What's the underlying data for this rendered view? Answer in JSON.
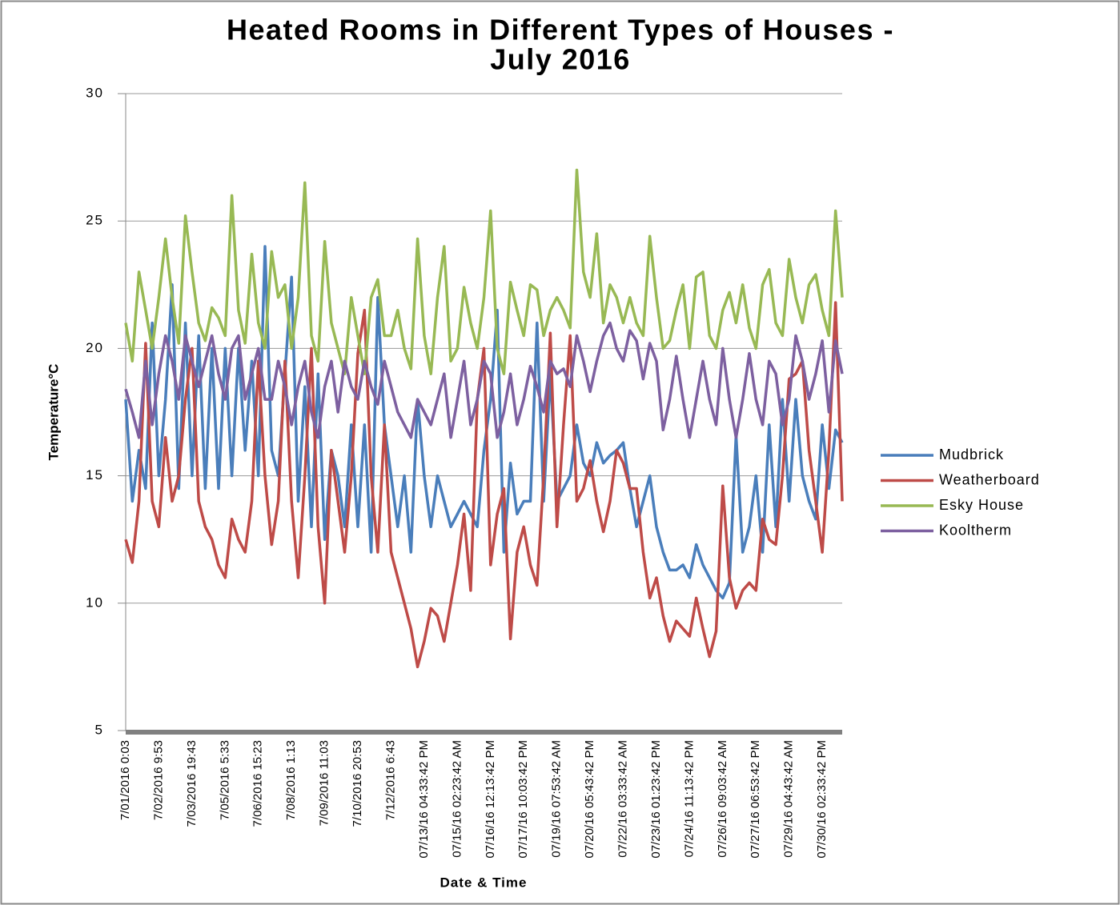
{
  "chart_data": {
    "type": "line",
    "title": [
      "Heated Rooms in Different Types of Houses -",
      "July 2016"
    ],
    "y_label": "Temperature°C",
    "x_label": "Date & Time",
    "ylim": [
      5,
      30
    ],
    "yticks": [
      5,
      10,
      15,
      20,
      25,
      30
    ],
    "grid": true,
    "legend": "right",
    "categories": [
      "7/01/2016 0:03",
      null,
      null,
      null,
      null,
      "7/02/2016 9:53",
      null,
      null,
      null,
      null,
      "7/03/2016 19:43",
      null,
      null,
      null,
      null,
      "7/05/2016 5:33",
      null,
      null,
      null,
      null,
      "7/06/2016 15:23",
      null,
      null,
      null,
      null,
      "7/08/2016 1:13",
      null,
      null,
      null,
      null,
      "7/09/2016 11:03",
      null,
      null,
      null,
      null,
      "7/10/2016 20:53",
      null,
      null,
      null,
      null,
      "7/12/2016 6:43",
      null,
      null,
      null,
      null,
      "07/13/16 04:33:42 PM",
      null,
      null,
      null,
      null,
      "07/15/16 02:23:42 AM",
      null,
      null,
      null,
      null,
      "07/16/16 12:13:42 PM",
      null,
      null,
      null,
      null,
      "07/17/16 10:03:42 PM",
      null,
      null,
      null,
      null,
      "07/19/16 07:53:42 AM",
      null,
      null,
      null,
      null,
      "07/20/16 05:43:42 PM",
      null,
      null,
      null,
      null,
      "07/22/16 03:33:42 AM",
      null,
      null,
      null,
      null,
      "07/23/16 01:23:42 PM",
      null,
      null,
      null,
      null,
      "07/24/16 11:13:42 PM",
      null,
      null,
      null,
      null,
      "07/26/16 09:03:42 AM",
      null,
      null,
      null,
      null,
      "07/27/16 06:53:42 PM",
      null,
      null,
      null,
      null,
      "07/29/16 04:43:42 AM",
      null,
      null,
      null,
      null,
      "07/30/16 02:33:42 PM",
      null,
      null,
      null
    ],
    "series": [
      {
        "name": "Mudbrick",
        "color": "#4a7ebb",
        "values": [
          18,
          14,
          16,
          14.5,
          21,
          15,
          18,
          22.5,
          14.5,
          21,
          15,
          20.5,
          14.5,
          20,
          14.5,
          20,
          15,
          20,
          16,
          19.5,
          15,
          24,
          16,
          15,
          19,
          22.8,
          14,
          18.5,
          13,
          19,
          12.5,
          16,
          15,
          13,
          17,
          13,
          17,
          12,
          22,
          17,
          15,
          13,
          15,
          12,
          18,
          15,
          13,
          15,
          14,
          13,
          13.5,
          14,
          13.5,
          13,
          16,
          18,
          21.5,
          12,
          15.5,
          13.5,
          14,
          14,
          21,
          14,
          19,
          14,
          14.5,
          15,
          17,
          15.5,
          15,
          16.3,
          15.5,
          15.8,
          16,
          16.3,
          14.5,
          13,
          14,
          15,
          13,
          12,
          11.3,
          11.3,
          11.5,
          11,
          12.3,
          11.5,
          11,
          10.5,
          10.2,
          10.8,
          16.6,
          12,
          13,
          15,
          12,
          17,
          13,
          18,
          14,
          18,
          15,
          14,
          13.3,
          17,
          14.5,
          16.8,
          16.3
        ]
      },
      {
        "name": "Weatherboard",
        "color": "#be4b48",
        "values": [
          12.5,
          11.6,
          14,
          20.2,
          14,
          13,
          16.5,
          14,
          15,
          18,
          20,
          14,
          13,
          12.5,
          11.5,
          11,
          13.3,
          12.5,
          12,
          14,
          19.5,
          15,
          12.3,
          14,
          19.5,
          14,
          11,
          15,
          20,
          13,
          10,
          16,
          14,
          12,
          15,
          19.8,
          21.5,
          15,
          12,
          17,
          12,
          11,
          10,
          9,
          7.5,
          8.5,
          9.8,
          9.5,
          8.5,
          10,
          11.5,
          13.5,
          10.5,
          18,
          20,
          11.5,
          13.5,
          14.5,
          8.6,
          12,
          13,
          11.5,
          10.7,
          15,
          20.6,
          13,
          17,
          20.5,
          14,
          14.5,
          15.6,
          14,
          12.8,
          14,
          16,
          15.5,
          14.5,
          14.5,
          12,
          10.2,
          11,
          9.5,
          8.5,
          9.3,
          9,
          8.7,
          10.2,
          9,
          7.9,
          8.9,
          14.6,
          11,
          9.8,
          10.5,
          10.8,
          10.5,
          13.3,
          12.5,
          12.3,
          15,
          18.8,
          19,
          19.5,
          16,
          14,
          12,
          16,
          21.8,
          14
        ]
      },
      {
        "name": "Esky House",
        "color": "#98b954",
        "values": [
          21,
          19.5,
          23,
          21.5,
          20,
          22,
          24.3,
          22,
          20.2,
          25.2,
          23,
          21,
          20.3,
          21.6,
          21.2,
          20.5,
          26,
          21.5,
          20.2,
          23.7,
          21,
          20,
          23.8,
          22,
          22.5,
          20,
          22,
          26.5,
          20.5,
          19.5,
          24.2,
          21,
          20,
          19,
          22,
          20.5,
          19,
          22,
          22.7,
          20.5,
          20.5,
          21.5,
          20,
          19.2,
          24.3,
          20.5,
          19,
          22,
          24,
          19.5,
          20,
          22.4,
          21,
          20,
          22,
          25.4,
          20,
          19,
          22.6,
          21.5,
          20.5,
          22.5,
          22.3,
          20.5,
          21.5,
          22,
          21.5,
          20.8,
          27,
          23,
          22,
          24.5,
          21,
          22.5,
          22,
          21,
          22,
          21,
          20.5,
          24.4,
          22,
          20,
          20.3,
          21.5,
          22.5,
          20,
          22.8,
          23,
          20.5,
          20,
          21.5,
          22.2,
          21,
          22.5,
          20.8,
          20,
          22.5,
          23.1,
          21,
          20.5,
          23.5,
          22,
          21,
          22.5,
          22.9,
          21.5,
          20.5,
          25.4,
          22
        ]
      },
      {
        "name": "Kooltherm",
        "color": "#7d60a0",
        "values": [
          18.4,
          17.5,
          16.5,
          19.5,
          17,
          19,
          20.5,
          19.5,
          18,
          20.5,
          19.5,
          18.5,
          19.5,
          20.5,
          19,
          18,
          20,
          20.5,
          18,
          19,
          20,
          18,
          18,
          19.5,
          18.5,
          17,
          18.5,
          19.5,
          17.5,
          16.5,
          18.5,
          19.5,
          17.5,
          19.5,
          18.5,
          18,
          19.5,
          18.5,
          17.8,
          19.5,
          18.5,
          17.5,
          17,
          16.5,
          18,
          17.5,
          17,
          18,
          19,
          16.5,
          18,
          19.5,
          17,
          18,
          19.5,
          19,
          16.5,
          17.5,
          19,
          17,
          18,
          19.3,
          18.5,
          17.5,
          19.5,
          19,
          19.2,
          18.5,
          20.5,
          19.5,
          18.3,
          19.5,
          20.5,
          21,
          20,
          19.5,
          20.7,
          20.3,
          18.8,
          20.2,
          19.5,
          16.8,
          18,
          19.7,
          18,
          16.5,
          18,
          19.5,
          18,
          17,
          20,
          18,
          16.5,
          18,
          19.8,
          18,
          17,
          19.5,
          19,
          17,
          18,
          20.5,
          19.5,
          18,
          19,
          20.3,
          17.5,
          20.3,
          19
        ]
      }
    ]
  }
}
